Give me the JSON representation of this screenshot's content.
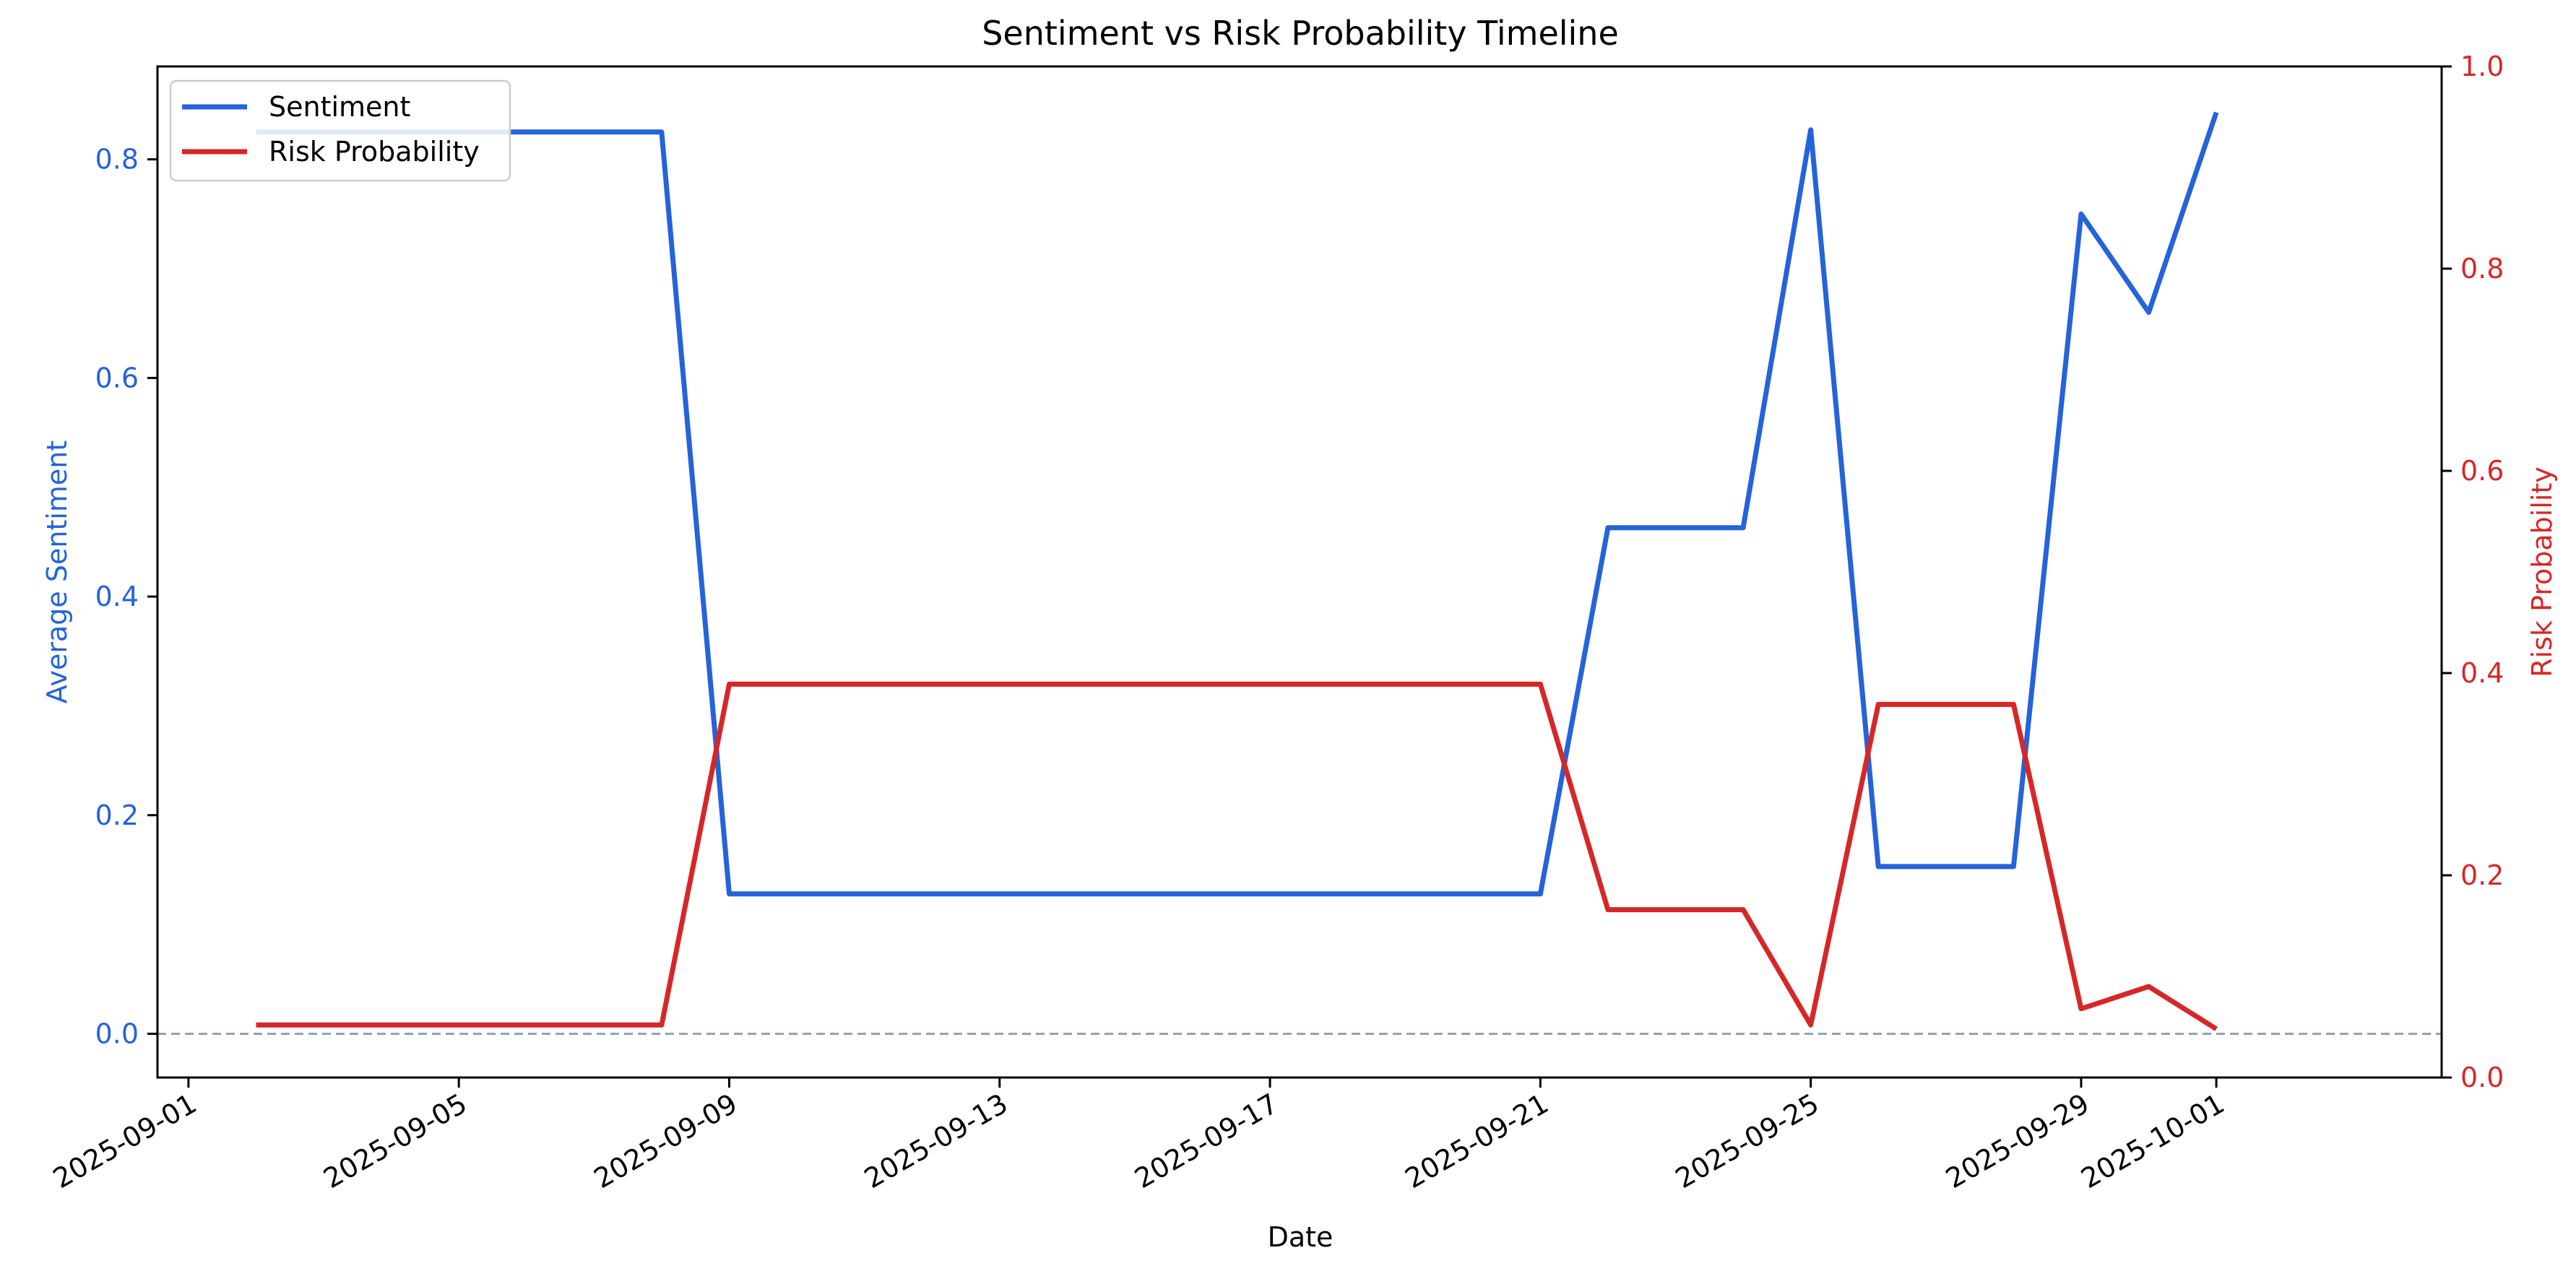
{
  "chart_data": {
    "type": "line",
    "title": "Sentiment vs Risk Probability Timeline",
    "xlabel": "Date",
    "ylabel_left": "Average Sentiment",
    "ylabel_right": "Risk Probability",
    "xlim": [
      "2025-08-31T13:00",
      "2025-10-04T08:00"
    ],
    "ylim_left": [
      -0.04,
      0.885
    ],
    "ylim_right": [
      0.0,
      1.0
    ],
    "xticks": [
      "2025-09-01",
      "2025-09-05",
      "2025-09-09",
      "2025-09-13",
      "2025-09-17",
      "2025-09-21",
      "2025-09-25",
      "2025-09-29",
      "2025-10-01"
    ],
    "yticks_left": [
      "0.0",
      "0.2",
      "0.4",
      "0.6",
      "0.8"
    ],
    "yticks_right": [
      "0.0",
      "0.2",
      "0.4",
      "0.6",
      "0.8",
      "1.0"
    ],
    "reference_line": {
      "axis": "left",
      "y": 0.0,
      "style": "dashed"
    },
    "legend": {
      "position": "top-left"
    },
    "grid": false,
    "series": [
      {
        "name": "Sentiment",
        "axis": "left",
        "color": "#2563d9",
        "x": [
          "2025-09-02",
          "2025-09-08",
          "2025-09-09",
          "2025-09-21",
          "2025-09-22",
          "2025-09-24",
          "2025-09-25",
          "2025-09-26",
          "2025-09-28",
          "2025-09-29",
          "2025-09-30",
          "2025-10-01"
        ],
        "y": [
          0.825,
          0.825,
          0.128,
          0.128,
          0.463,
          0.463,
          0.827,
          0.153,
          0.153,
          0.75,
          0.66,
          0.843
        ]
      },
      {
        "name": "Risk Probability",
        "axis": "right",
        "color": "#d62728",
        "x": [
          "2025-09-02",
          "2025-09-08",
          "2025-09-09",
          "2025-09-21",
          "2025-09-22",
          "2025-09-24",
          "2025-09-25",
          "2025-09-26",
          "2025-09-28",
          "2025-09-29",
          "2025-09-30",
          "2025-10-01"
        ],
        "y": [
          0.052,
          0.052,
          0.389,
          0.389,
          0.166,
          0.166,
          0.052,
          0.369,
          0.369,
          0.068,
          0.09,
          0.048
        ]
      }
    ]
  }
}
